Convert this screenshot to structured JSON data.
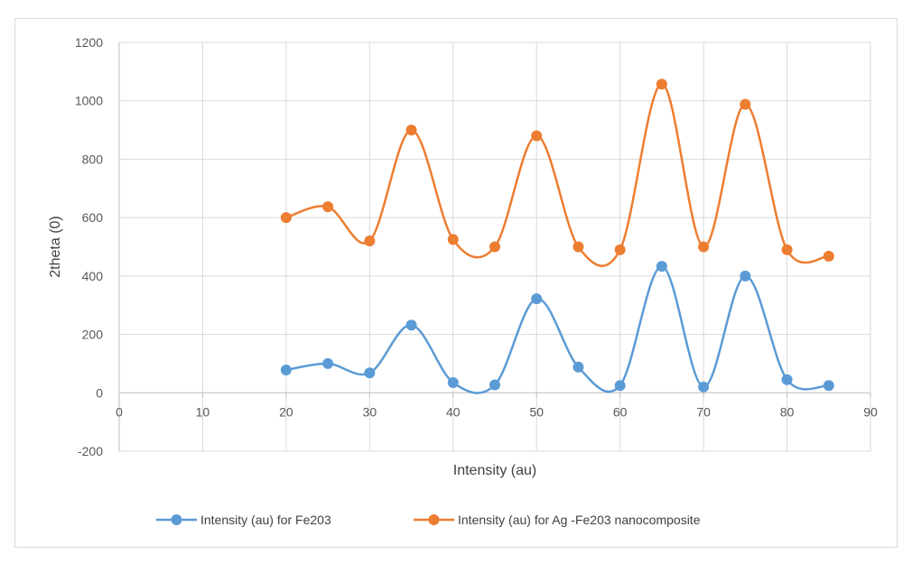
{
  "chart_data": {
    "type": "scatter",
    "title": "",
    "xlabel": "Intensity (au)",
    "ylabel": "2theta (0)",
    "xlim": [
      0,
      90
    ],
    "ylim": [
      -200,
      1200
    ],
    "x_ticks": [
      0,
      10,
      20,
      30,
      40,
      50,
      60,
      70,
      80,
      90
    ],
    "y_ticks": [
      -200,
      0,
      200,
      400,
      600,
      800,
      1000,
      1200
    ],
    "grid": true,
    "smooth_lines": true,
    "legend_position": "bottom",
    "series": [
      {
        "name": "Intensity (au) for Fe203",
        "color": "#5b9bd5",
        "x": [
          20,
          25,
          30,
          35,
          40,
          45,
          50,
          55,
          60,
          65,
          70,
          75,
          80,
          85
        ],
        "y": [
          78,
          100,
          68,
          232,
          35,
          27,
          322,
          88,
          25,
          433,
          20,
          400,
          45,
          25
        ]
      },
      {
        "name": "Intensity (au) for  Ag -Fe203 nanocomposite",
        "color": "#ed7d31",
        "x": [
          20,
          25,
          30,
          35,
          40,
          45,
          50,
          55,
          60,
          65,
          70,
          75,
          80,
          85
        ],
        "y": [
          600,
          637,
          520,
          900,
          525,
          500,
          880,
          500,
          490,
          1057,
          500,
          988,
          490,
          468
        ]
      }
    ]
  }
}
